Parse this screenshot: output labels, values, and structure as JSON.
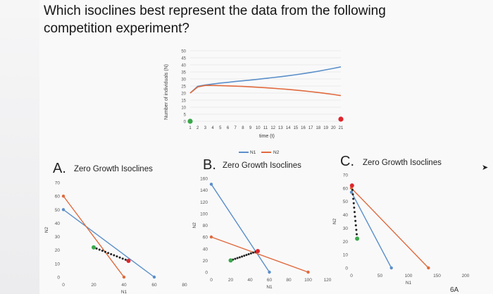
{
  "question": "Which isoclines best represent the data from the following competition experiment?",
  "colors": {
    "blue": "#5b8fc9",
    "orange": "#e06a3e",
    "green": "#3aa84a",
    "red": "#e0252c",
    "black": "#222222"
  },
  "chart_data": [
    {
      "type": "line",
      "ylabel": "Number of individuals (N)",
      "xlabel": "time (t)",
      "x": [
        1,
        2,
        3,
        4,
        5,
        6,
        7,
        8,
        9,
        10,
        11,
        12,
        13,
        14,
        15,
        16,
        17,
        18,
        19,
        20,
        21
      ],
      "ylim": [
        0,
        50
      ],
      "yticks": [
        0,
        5,
        10,
        15,
        20,
        25,
        30,
        35,
        40,
        45,
        50
      ],
      "legend": "bottom-center",
      "series": [
        {
          "name": "N1",
          "color": "#5b8fc9",
          "values": [
            20,
            24.8,
            25.7,
            26.4,
            27.1,
            27.6,
            28.2,
            28.7,
            29.2,
            29.8,
            30.4,
            31,
            31.6,
            32.3,
            33,
            33.8,
            34.6,
            35.5,
            36.5,
            37.5,
            38.6
          ]
        },
        {
          "name": "N2",
          "color": "#e06a3e",
          "values": [
            20,
            24.3,
            25.4,
            25.4,
            25.3,
            25.1,
            24.9,
            24.7,
            24.4,
            24.1,
            23.8,
            23.4,
            23,
            22.6,
            22.1,
            21.6,
            21,
            20.4,
            19.7,
            19,
            18.2
          ]
        }
      ],
      "points": [
        {
          "x": 1,
          "y": 0,
          "color": "#3aa84a"
        },
        {
          "x": 21,
          "y": 1.5,
          "color": "#e0252c"
        }
      ],
      "grid": true
    },
    {
      "panel": "A.",
      "title": "Zero Growth Isoclines",
      "type": "line",
      "xlabel": "N1",
      "ylabel": "N2",
      "xlim": [
        0,
        80
      ],
      "ylim": [
        0,
        70
      ],
      "xticks": [
        0,
        20,
        40,
        60,
        80
      ],
      "yticks": [
        0,
        10,
        20,
        30,
        40,
        50,
        60,
        70
      ],
      "lines": [
        {
          "color": "#5b8fc9",
          "from": [
            0,
            50
          ],
          "to": [
            60,
            0
          ]
        },
        {
          "color": "#e06a3e",
          "from": [
            0,
            60
          ],
          "to": [
            40,
            0
          ]
        }
      ],
      "trajectory": {
        "start": [
          20,
          22
        ],
        "end": [
          43,
          12
        ]
      },
      "grid": false
    },
    {
      "panel": "B.",
      "title": "Zero Growth Isoclines",
      "type": "line",
      "xlabel": "N1",
      "ylabel": "N2",
      "xlim": [
        0,
        120
      ],
      "ylim": [
        0,
        160
      ],
      "xticks": [
        0,
        20,
        40,
        60,
        80,
        100,
        120
      ],
      "yticks": [
        0,
        20,
        40,
        60,
        80,
        100,
        120,
        140,
        160
      ],
      "lines": [
        {
          "color": "#5b8fc9",
          "from": [
            0,
            150
          ],
          "to": [
            60,
            0
          ]
        },
        {
          "color": "#e06a3e",
          "from": [
            0,
            60
          ],
          "to": [
            100,
            0
          ]
        }
      ],
      "trajectory": {
        "start": [
          20,
          20
        ],
        "end": [
          48,
          36
        ]
      },
      "grid": false
    },
    {
      "panel": "C.",
      "title": "Zero Growth Isoclines",
      "type": "line",
      "xlabel": "N1",
      "ylabel": "N2",
      "xlim": [
        0,
        200
      ],
      "ylim": [
        0,
        70
      ],
      "xticks": [
        0,
        50,
        100,
        150,
        200
      ],
      "yticks": [
        0,
        10,
        20,
        30,
        40,
        50,
        60,
        70
      ],
      "lines": [
        {
          "color": "#5b8fc9",
          "from": [
            0,
            57
          ],
          "to": [
            70,
            0
          ]
        },
        {
          "color": "#e06a3e",
          "from": [
            0,
            60
          ],
          "to": [
            135,
            0
          ]
        }
      ],
      "trajectory": {
        "start": [
          10,
          22
        ],
        "end": [
          1,
          62
        ]
      },
      "grid": false
    }
  ],
  "footer_fragment": "6A"
}
